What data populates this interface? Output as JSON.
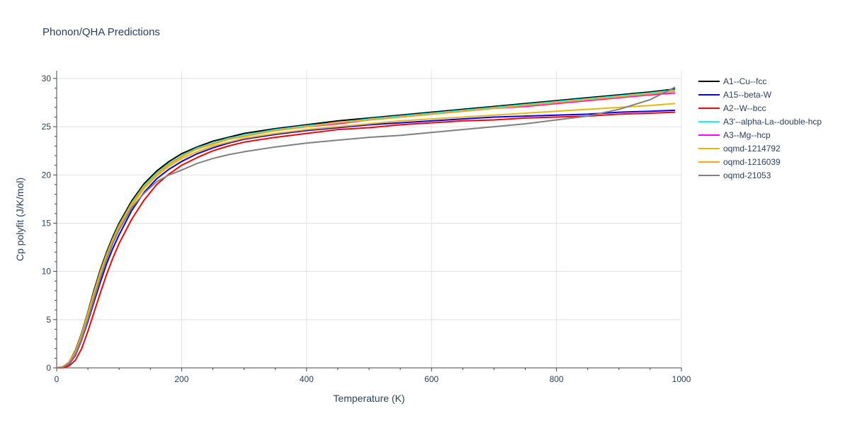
{
  "chart_data": {
    "type": "line",
    "title": "Phonon/QHA Predictions",
    "xlabel": "Temperature (K)",
    "ylabel": "Cp polyfit (J/K/mol)",
    "xlim": [
      0,
      1000
    ],
    "ylim": [
      0,
      30.8
    ],
    "xticks": [
      0,
      200,
      400,
      600,
      800,
      1000
    ],
    "yticks": [
      0,
      5,
      10,
      15,
      20,
      25,
      30
    ],
    "grid": true,
    "legend_position": "right",
    "x": [
      0,
      10,
      20,
      30,
      40,
      50,
      60,
      70,
      80,
      90,
      100,
      120,
      140,
      160,
      180,
      200,
      225,
      250,
      275,
      300,
      350,
      400,
      450,
      500,
      550,
      600,
      650,
      700,
      750,
      800,
      850,
      900,
      950,
      990
    ],
    "series": [
      {
        "name": "A1--Cu--fcc",
        "color": "#000000",
        "values": [
          0,
          0.1,
          0.6,
          1.8,
          3.6,
          5.8,
          8.1,
          10.2,
          12.0,
          13.6,
          15.0,
          17.3,
          19.1,
          20.4,
          21.4,
          22.2,
          22.9,
          23.5,
          23.9,
          24.3,
          24.8,
          25.2,
          25.6,
          25.9,
          26.2,
          26.5,
          26.8,
          27.1,
          27.4,
          27.7,
          28.0,
          28.3,
          28.6,
          28.9
        ]
      },
      {
        "name": "A15--beta-W",
        "color": "#0000ff",
        "values": [
          0,
          0.05,
          0.4,
          1.3,
          2.9,
          4.8,
          6.9,
          8.9,
          10.8,
          12.4,
          13.8,
          16.3,
          18.2,
          19.6,
          20.6,
          21.4,
          22.2,
          22.8,
          23.3,
          23.7,
          24.2,
          24.6,
          24.9,
          25.2,
          25.4,
          25.6,
          25.8,
          26.0,
          26.1,
          26.2,
          26.3,
          26.5,
          26.6,
          26.7
        ]
      },
      {
        "name": "A2--W--bcc",
        "color": "#ff0000",
        "values": [
          0,
          0.02,
          0.2,
          0.8,
          2.0,
          3.8,
          5.8,
          7.8,
          9.7,
          11.4,
          12.9,
          15.4,
          17.4,
          19.0,
          20.1,
          21.0,
          21.8,
          22.5,
          23.0,
          23.4,
          23.9,
          24.3,
          24.7,
          24.9,
          25.2,
          25.4,
          25.6,
          25.7,
          25.9,
          26.0,
          26.1,
          26.3,
          26.4,
          26.5
        ]
      },
      {
        "name": "A3'--alpha-La--double-hcp",
        "color": "#00ffff",
        "values": [
          0,
          0.1,
          0.6,
          1.7,
          3.5,
          5.7,
          7.9,
          10.0,
          11.8,
          13.4,
          14.8,
          17.1,
          18.9,
          20.2,
          21.2,
          22.0,
          22.8,
          23.3,
          23.8,
          24.1,
          24.7,
          25.1,
          25.4,
          25.8,
          26.1,
          26.4,
          26.7,
          27.0,
          27.3,
          27.6,
          27.9,
          28.2,
          28.5,
          28.8
        ]
      },
      {
        "name": "A3--Mg--hcp",
        "color": "#ff00ff",
        "values": [
          0,
          0.1,
          0.6,
          1.7,
          3.4,
          5.6,
          7.8,
          9.9,
          11.7,
          13.3,
          14.7,
          17.0,
          18.8,
          20.1,
          21.1,
          21.9,
          22.7,
          23.2,
          23.7,
          24.0,
          24.6,
          25.0,
          25.3,
          25.7,
          26.0,
          26.3,
          26.6,
          26.9,
          27.1,
          27.4,
          27.7,
          28.0,
          28.3,
          28.5
        ]
      },
      {
        "name": "oqmd-1214792",
        "color": "#e6b800",
        "values": [
          0,
          0.08,
          0.55,
          1.6,
          3.3,
          5.4,
          7.6,
          9.7,
          11.5,
          13.1,
          14.5,
          16.8,
          18.6,
          19.9,
          20.9,
          21.7,
          22.4,
          23.0,
          23.4,
          23.8,
          24.3,
          24.7,
          25.0,
          25.3,
          25.6,
          25.8,
          26.0,
          26.2,
          26.4,
          26.6,
          26.8,
          27.0,
          27.2,
          27.4
        ]
      },
      {
        "name": "oqmd-1216039",
        "color": "#ffa500",
        "values": [
          0,
          0.09,
          0.58,
          1.7,
          3.4,
          5.6,
          7.8,
          9.9,
          11.7,
          13.3,
          14.7,
          17.0,
          18.8,
          20.1,
          21.1,
          21.9,
          22.7,
          23.2,
          23.7,
          24.0,
          24.6,
          25.0,
          25.4,
          25.7,
          26.0,
          26.3,
          26.6,
          26.9,
          27.2,
          27.5,
          27.8,
          28.1,
          28.4,
          28.7
        ]
      },
      {
        "name": "oqmd-21053",
        "color": "#808080",
        "values": [
          0,
          0.06,
          0.45,
          1.4,
          3.0,
          5.0,
          7.2,
          9.3,
          11.2,
          12.9,
          14.3,
          16.6,
          18.1,
          19.3,
          20.0,
          20.5,
          21.2,
          21.7,
          22.1,
          22.4,
          22.9,
          23.3,
          23.6,
          23.9,
          24.1,
          24.4,
          24.7,
          25.0,
          25.3,
          25.7,
          26.1,
          26.8,
          27.8,
          29.1
        ]
      }
    ]
  }
}
